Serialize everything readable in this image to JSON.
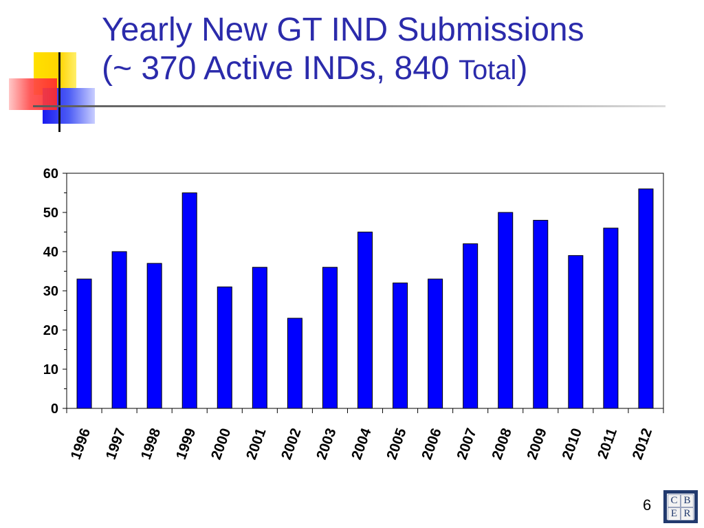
{
  "slide": {
    "title_line1": "Yearly New GT IND Submissions",
    "title_line2_main": "(~ 370 Active INDs, 840 ",
    "title_line2_small": "Total",
    "title_line2_end": ")",
    "page_number": "6",
    "logo": {
      "letters": [
        "C",
        "B",
        "E",
        "R"
      ]
    }
  },
  "chart_data": {
    "type": "bar",
    "categories": [
      "1996",
      "1997",
      "1998",
      "1999",
      "2000",
      "2001",
      "2002",
      "2003",
      "2004",
      "2005",
      "2006",
      "2007",
      "2008",
      "2009",
      "2010",
      "2011",
      "2012"
    ],
    "values": [
      33,
      40,
      37,
      55,
      31,
      36,
      23,
      36,
      45,
      32,
      33,
      42,
      50,
      48,
      39,
      46,
      56
    ],
    "ylim": [
      0,
      60
    ],
    "yticks": [
      0,
      10,
      20,
      30,
      40,
      50,
      60
    ],
    "bar_color": "#0000ff",
    "grid": false,
    "legend": "none"
  }
}
